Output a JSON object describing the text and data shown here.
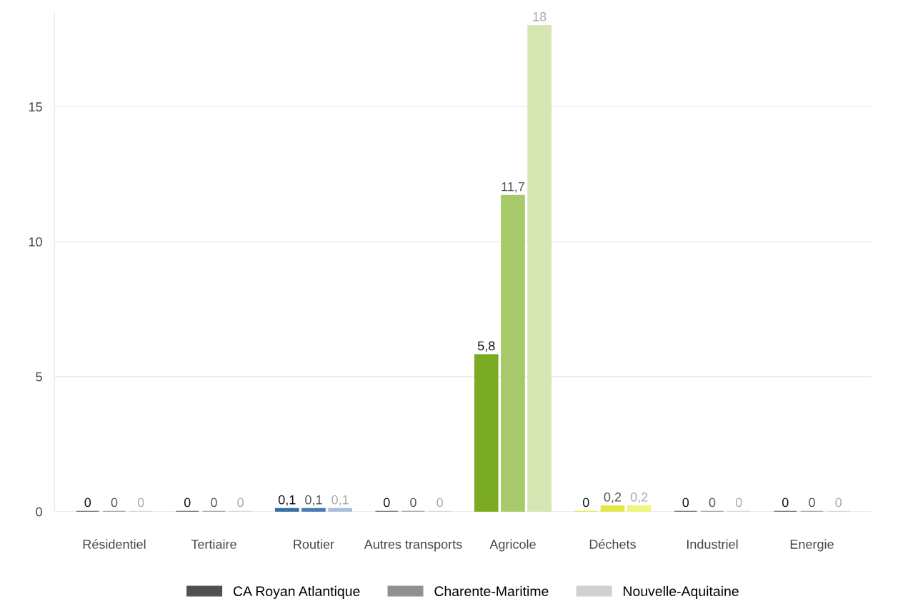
{
  "chart_data": {
    "type": "bar",
    "categories": [
      "Résidentiel",
      "Tertiaire",
      "Routier",
      "Autres transports",
      "Agricole",
      "Déchets",
      "Industriel",
      "Energie"
    ],
    "series": [
      {
        "name": "CA Royan Atlantique",
        "color": "#505050",
        "values": [
          0,
          0,
          0.1,
          0,
          5.8,
          0,
          0,
          0
        ],
        "colors": [
          "#505050",
          "#505050",
          "#3a6ea5",
          "#505050",
          "#7bab23",
          "#e6e61e",
          "#505050",
          "#505050"
        ],
        "value_labels": [
          "0",
          "0",
          "0,1",
          "0",
          "5,8",
          "0",
          "0",
          "0"
        ]
      },
      {
        "name": "Charente-Maritime",
        "color": "#909090",
        "values": [
          0,
          0,
          0.1,
          0,
          11.7,
          0.2,
          0,
          0
        ],
        "colors": [
          "#909090",
          "#909090",
          "#4a7cb0",
          "#909090",
          "#a8c96a",
          "#e2e84a",
          "#909090",
          "#909090"
        ],
        "value_labels": [
          "0",
          "0",
          "0,1",
          "0",
          "11,7",
          "0,2",
          "0",
          "0"
        ]
      },
      {
        "name": "Nouvelle-Aquitaine",
        "color": "#d0d0d0",
        "values": [
          0,
          0,
          0.1,
          0,
          18,
          0.2,
          0,
          0
        ],
        "colors": [
          "#d0d0d0",
          "#d0d0d0",
          "#a8bfdc",
          "#d0d0d0",
          "#d6e6b2",
          "#eef580",
          "#d0d0d0",
          "#d0d0d0"
        ],
        "value_labels": [
          "0",
          "0",
          "0,1",
          "0",
          "18",
          "0,2",
          "0",
          "0"
        ]
      }
    ],
    "ylim": [
      0,
      18.5
    ],
    "yticks": [
      0,
      5,
      10,
      15
    ],
    "grid": "y",
    "legend": "bottom"
  }
}
